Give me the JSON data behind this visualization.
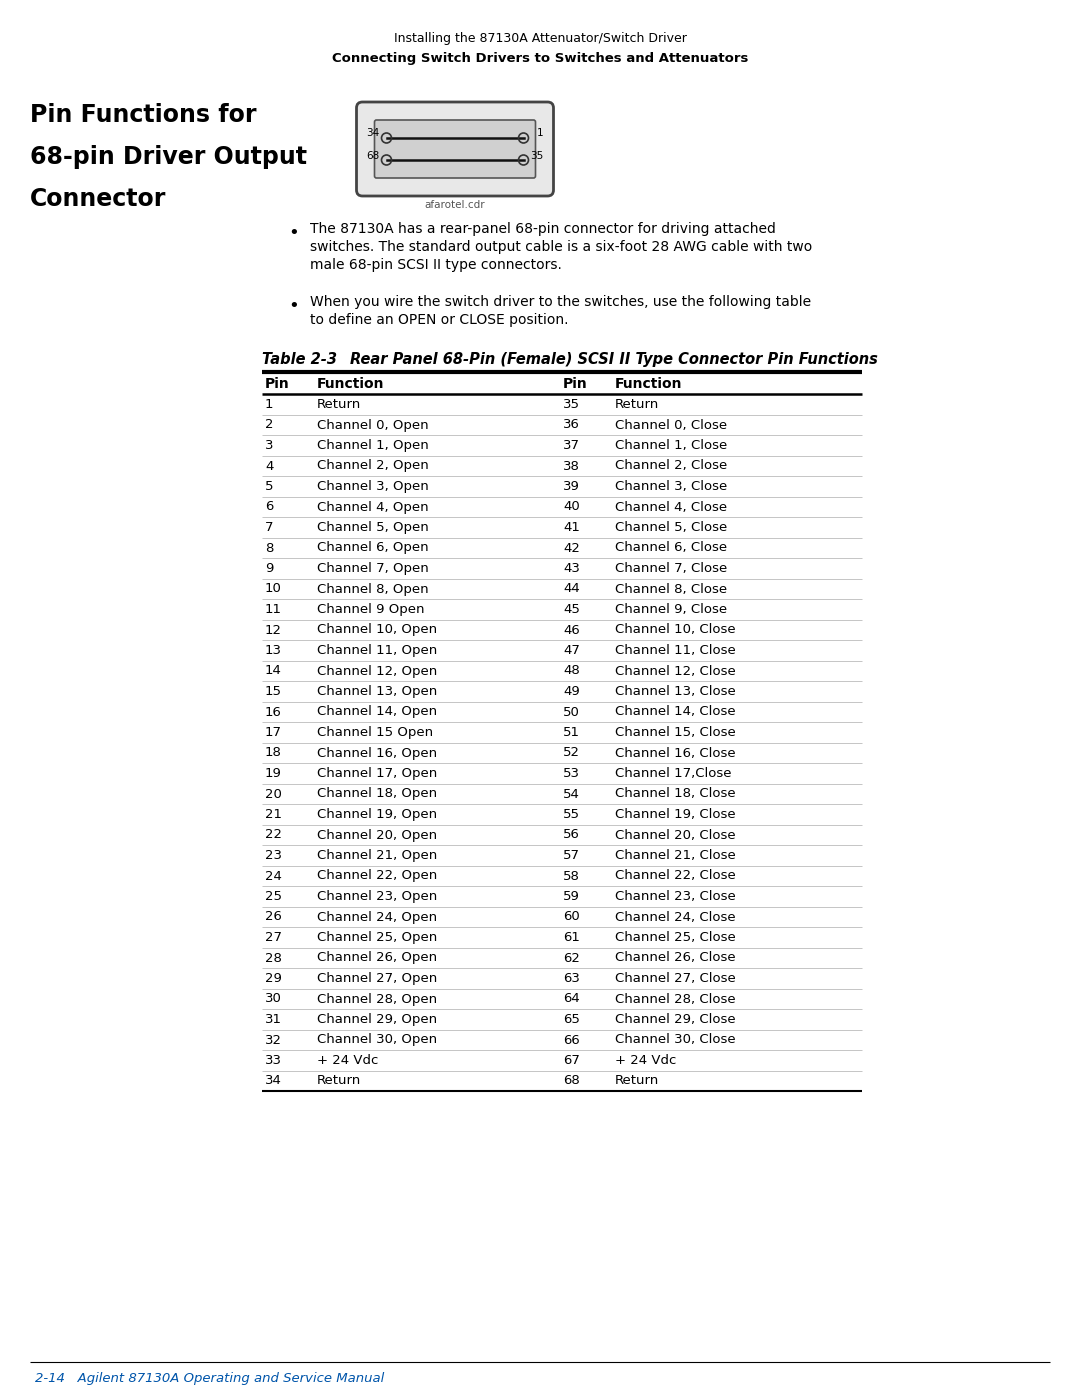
{
  "page_header_line1": "Installing the 87130A Attenuator/Switch Driver",
  "page_header_line2": "Connecting Switch Drivers to Switches and Attenuators",
  "section_title_lines": [
    "Pin Functions for",
    "68-pin Driver Output",
    "Connector"
  ],
  "bullet1_lines": [
    "The 87130A has a rear-panel 68-pin connector for driving attached",
    "switches. The standard output cable is a six-foot 28 AWG cable with two",
    "male 68-pin SCSI II type connectors."
  ],
  "bullet2_lines": [
    "When you wire the switch driver to the switches, use the following table",
    "to define an OPEN or CLOSE position."
  ],
  "table_label": "Table 2-3",
  "table_title": "Rear Panel 68-Pin (Female) SCSI II Type Connector Pin Functions",
  "col_headers": [
    "Pin",
    "Function",
    "Pin",
    "Function"
  ],
  "rows": [
    [
      "1",
      "Return",
      "35",
      "Return"
    ],
    [
      "2",
      "Channel 0, Open",
      "36",
      "Channel 0, Close"
    ],
    [
      "3",
      "Channel 1, Open",
      "37",
      "Channel 1, Close"
    ],
    [
      "4",
      "Channel 2, Open",
      "38",
      "Channel 2, Close"
    ],
    [
      "5",
      "Channel 3, Open",
      "39",
      "Channel 3, Close"
    ],
    [
      "6",
      "Channel 4, Open",
      "40",
      "Channel 4, Close"
    ],
    [
      "7",
      "Channel 5, Open",
      "41",
      "Channel 5, Close"
    ],
    [
      "8",
      "Channel 6, Open",
      "42",
      "Channel 6, Close"
    ],
    [
      "9",
      "Channel 7, Open",
      "43",
      "Channel 7, Close"
    ],
    [
      "10",
      "Channel 8, Open",
      "44",
      "Channel 8, Close"
    ],
    [
      "11",
      "Channel 9 Open",
      "45",
      "Channel 9, Close"
    ],
    [
      "12",
      "Channel 10, Open",
      "46",
      "Channel 10, Close"
    ],
    [
      "13",
      "Channel 11, Open",
      "47",
      "Channel 11, Close"
    ],
    [
      "14",
      "Channel 12, Open",
      "48",
      "Channel 12, Close"
    ],
    [
      "15",
      "Channel 13, Open",
      "49",
      "Channel 13, Close"
    ],
    [
      "16",
      "Channel 14, Open",
      "50",
      "Channel 14, Close"
    ],
    [
      "17",
      "Channel 15 Open",
      "51",
      "Channel 15, Close"
    ],
    [
      "18",
      "Channel 16, Open",
      "52",
      "Channel 16, Close"
    ],
    [
      "19",
      "Channel 17, Open",
      "53",
      "Channel 17,Close"
    ],
    [
      "20",
      "Channel 18, Open",
      "54",
      "Channel 18, Close"
    ],
    [
      "21",
      "Channel 19, Open",
      "55",
      "Channel 19, Close"
    ],
    [
      "22",
      "Channel 20, Open",
      "56",
      "Channel 20, Close"
    ],
    [
      "23",
      "Channel 21, Open",
      "57",
      "Channel 21, Close"
    ],
    [
      "24",
      "Channel 22, Open",
      "58",
      "Channel 22, Close"
    ],
    [
      "25",
      "Channel 23, Open",
      "59",
      "Channel 23, Close"
    ],
    [
      "26",
      "Channel 24, Open",
      "60",
      "Channel 24, Close"
    ],
    [
      "27",
      "Channel 25, Open",
      "61",
      "Channel 25, Close"
    ],
    [
      "28",
      "Channel 26, Open",
      "62",
      "Channel 26, Close"
    ],
    [
      "29",
      "Channel 27, Open",
      "63",
      "Channel 27, Close"
    ],
    [
      "30",
      "Channel 28, Open",
      "64",
      "Channel 28, Close"
    ],
    [
      "31",
      "Channel 29, Open",
      "65",
      "Channel 29, Close"
    ],
    [
      "32",
      "Channel 30, Open",
      "66",
      "Channel 30, Close"
    ],
    [
      "33",
      "+ 24 Vdc",
      "67",
      "+ 24 Vdc"
    ],
    [
      "34",
      "Return",
      "68",
      "Return"
    ]
  ],
  "connector_caption": "afarotel.cdr",
  "footer_text": "2-14   Agilent 87130A Operating and Service Manual",
  "footer_color": "#0055AA",
  "bg_color": "#FFFFFF",
  "text_color": "#000000"
}
